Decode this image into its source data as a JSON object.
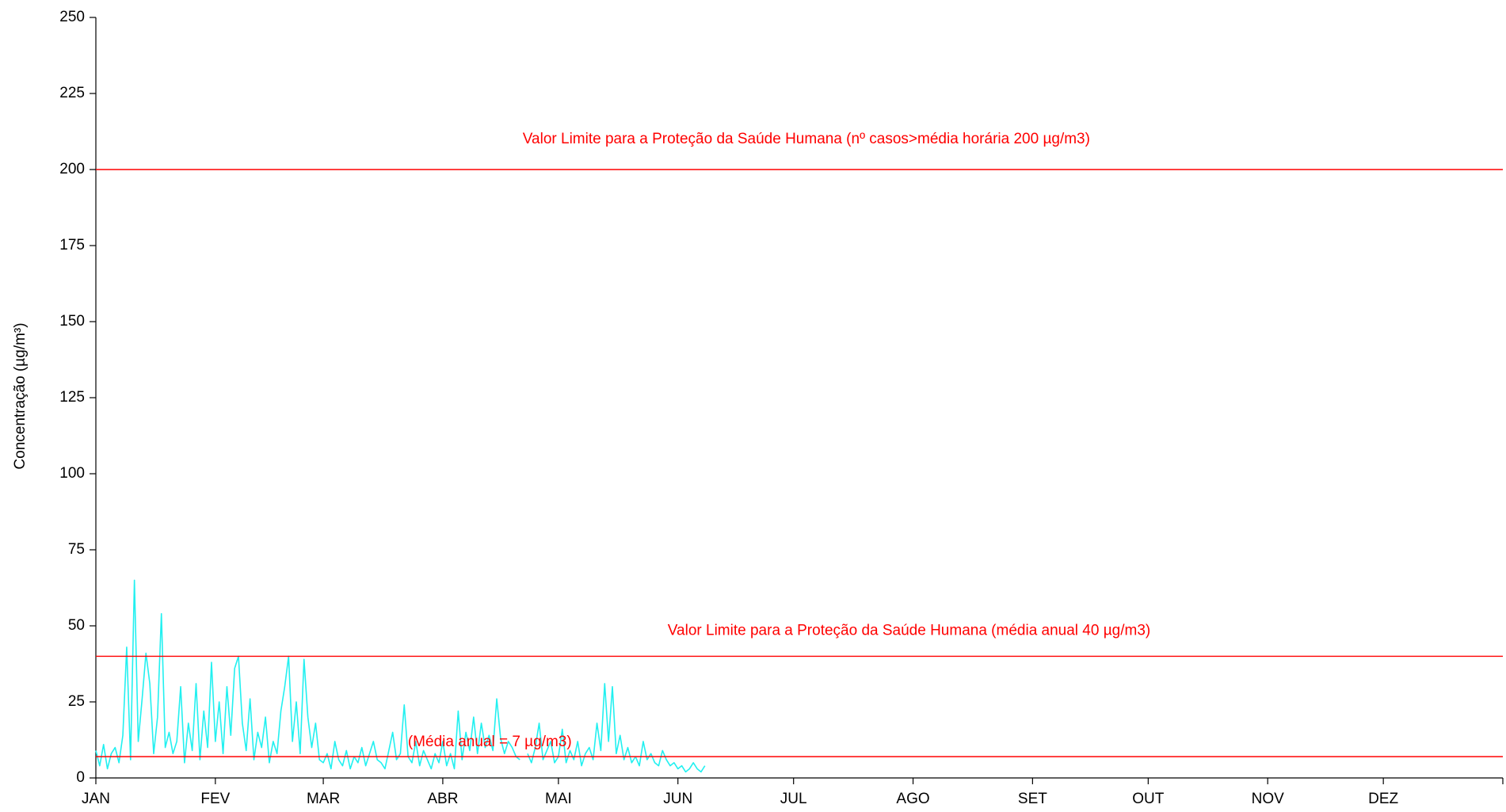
{
  "chart_data": {
    "type": "line",
    "y_label": "Concentração (µg/m³)",
    "xlim": [
      0,
      365
    ],
    "xticks": [
      {
        "value": 0,
        "label": "JAN"
      },
      {
        "value": 31,
        "label": "FEV"
      },
      {
        "value": 59,
        "label": "MAR"
      },
      {
        "value": 90,
        "label": "ABR"
      },
      {
        "value": 120,
        "label": "MAI"
      },
      {
        "value": 151,
        "label": "JUN"
      },
      {
        "value": 181,
        "label": "JUL"
      },
      {
        "value": 212,
        "label": "AGO"
      },
      {
        "value": 243,
        "label": "SET"
      },
      {
        "value": 273,
        "label": "OUT"
      },
      {
        "value": 304,
        "label": "NOV"
      },
      {
        "value": 334,
        "label": "DEZ"
      }
    ],
    "ylim": [
      0,
      250
    ],
    "yticks": [
      0,
      25,
      50,
      75,
      100,
      125,
      150,
      175,
      200,
      225,
      250
    ],
    "grid": false,
    "reference_lines": [
      {
        "value": 200,
        "label": "Valor Limite para a Proteção da Saúde Humana (nº casos>média horária 200 µg/m3)",
        "color": "#ff0000"
      },
      {
        "value": 40,
        "label": "Valor Limite para a Proteção da Saúde Humana (média anual 40 µg/m3)",
        "color": "#ff0000"
      },
      {
        "value": 7,
        "label": "(Média anual = 7 µg/m3)",
        "color": "#ff0000"
      }
    ],
    "series": [
      {
        "color": "#22f0f0",
        "x": [
          0,
          1,
          2,
          3,
          4,
          5,
          6,
          7,
          8,
          9,
          10,
          11,
          12,
          13,
          14,
          15,
          16,
          17,
          18,
          19,
          20,
          21,
          22,
          23,
          24,
          25,
          26,
          27,
          28,
          29,
          30,
          31,
          32,
          33,
          34,
          35,
          36,
          37,
          38,
          39,
          40,
          41,
          42,
          43,
          44,
          45,
          46,
          47,
          48,
          49,
          50,
          51,
          52,
          53,
          54,
          55,
          56,
          57,
          58,
          59,
          60,
          61,
          62,
          63,
          64,
          65,
          66,
          67,
          68,
          69,
          70,
          71,
          72,
          73,
          74,
          75,
          76,
          77,
          78,
          79,
          80,
          81,
          82,
          83,
          84,
          85,
          86,
          87,
          88,
          89,
          90,
          91,
          92,
          93,
          94,
          95,
          96,
          97,
          98,
          99,
          100,
          101,
          102,
          103,
          104,
          105,
          106,
          107,
          108,
          109,
          110,
          111,
          112,
          113,
          114,
          115,
          116,
          117,
          118,
          119,
          120,
          121,
          122,
          123,
          124,
          125,
          126,
          127,
          128,
          129,
          130,
          131,
          132,
          133,
          134,
          135,
          136,
          137,
          138,
          139,
          140,
          141,
          142,
          143,
          144,
          145,
          146,
          147,
          148,
          149,
          150,
          151,
          152,
          153,
          154,
          155,
          156,
          157,
          158
        ],
        "values": [
          9,
          4,
          11,
          3,
          8,
          10,
          5,
          14,
          43,
          6,
          65,
          12,
          26,
          41,
          31,
          8,
          20,
          54,
          10,
          15,
          8,
          12,
          30,
          5,
          18,
          9,
          31,
          6,
          22,
          10,
          38,
          12,
          25,
          8,
          30,
          14,
          36,
          40,
          18,
          9,
          26,
          6,
          15,
          10,
          20,
          5,
          12,
          8,
          22,
          30,
          40,
          12,
          25,
          8,
          39,
          20,
          10,
          18,
          6,
          5,
          8,
          3,
          12,
          6,
          4,
          9,
          3,
          7,
          5,
          10,
          4,
          8,
          12,
          6,
          5,
          3,
          9,
          15,
          6,
          8,
          24,
          7,
          5,
          12,
          4,
          9,
          6,
          3,
          8,
          5,
          12,
          4,
          8,
          3,
          22,
          6,
          15,
          9,
          20,
          8,
          18,
          10,
          14,
          9,
          26,
          13,
          8,
          12,
          10,
          7,
          6,
          null,
          8,
          5,
          10,
          18,
          6,
          9,
          12,
          5,
          7,
          16,
          5,
          9,
          6,
          12,
          4,
          8,
          10,
          6,
          18,
          9,
          31,
          12,
          30,
          8,
          14,
          6,
          10,
          5,
          7,
          4,
          12,
          6,
          8,
          5,
          4,
          9,
          6,
          4,
          5,
          3,
          4,
          2,
          3,
          5,
          3,
          2,
          4
        ]
      }
    ]
  }
}
